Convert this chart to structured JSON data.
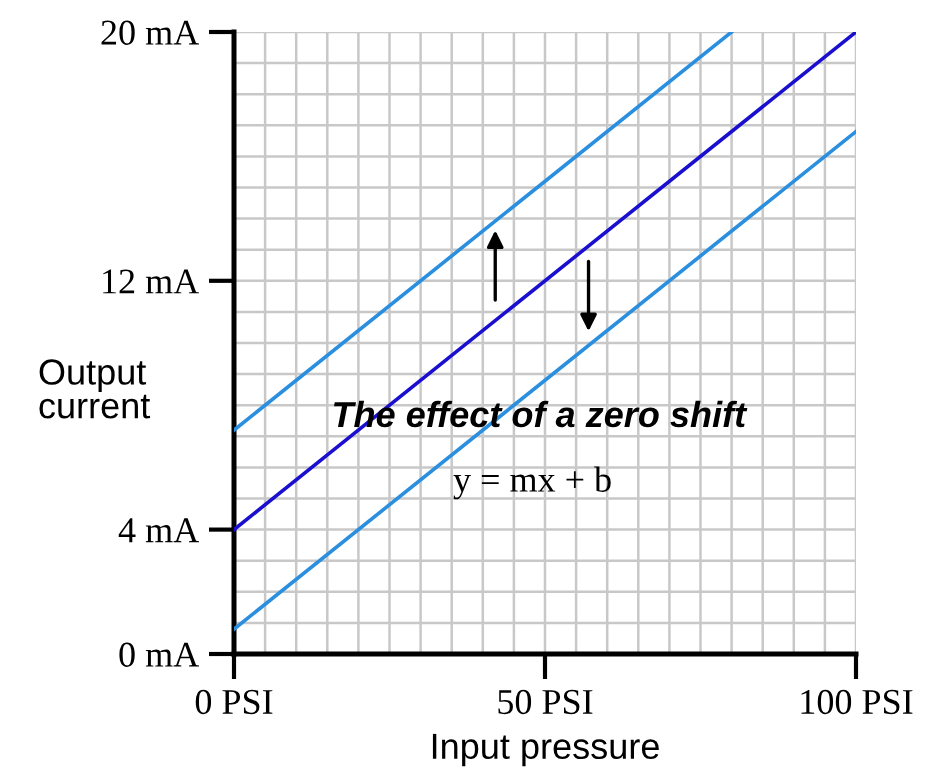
{
  "chart_data": {
    "type": "line",
    "xlabel": "Input pressure",
    "ylabel": "Output\ncurrent",
    "xlim": [
      0,
      100
    ],
    "ylim": [
      0,
      20
    ],
    "xticks": [
      {
        "value": 0,
        "label": "0 PSI"
      },
      {
        "value": 50,
        "label": "50 PSI"
      },
      {
        "value": 100,
        "label": "100 PSI"
      }
    ],
    "yticks": [
      {
        "value": 0,
        "label": "0 mA"
      },
      {
        "value": 4,
        "label": "4 mA"
      },
      {
        "value": 12,
        "label": "12 mA"
      },
      {
        "value": 20,
        "label": "20 mA"
      }
    ],
    "grid": true,
    "marker": "none",
    "line_style": "solid",
    "annotations": [
      "The effect of a zero shift",
      "y = mx + b"
    ],
    "series": [
      {
        "color": "#2b8fe0",
        "x": [
          0,
          80
        ],
        "values": [
          7.2,
          20
        ]
      },
      {
        "color": "#1a0fcf",
        "x": [
          0,
          100
        ],
        "values": [
          4,
          20
        ]
      },
      {
        "color": "#2b8fe0",
        "x": [
          0,
          100
        ],
        "values": [
          0.8,
          16.8
        ]
      }
    ]
  }
}
